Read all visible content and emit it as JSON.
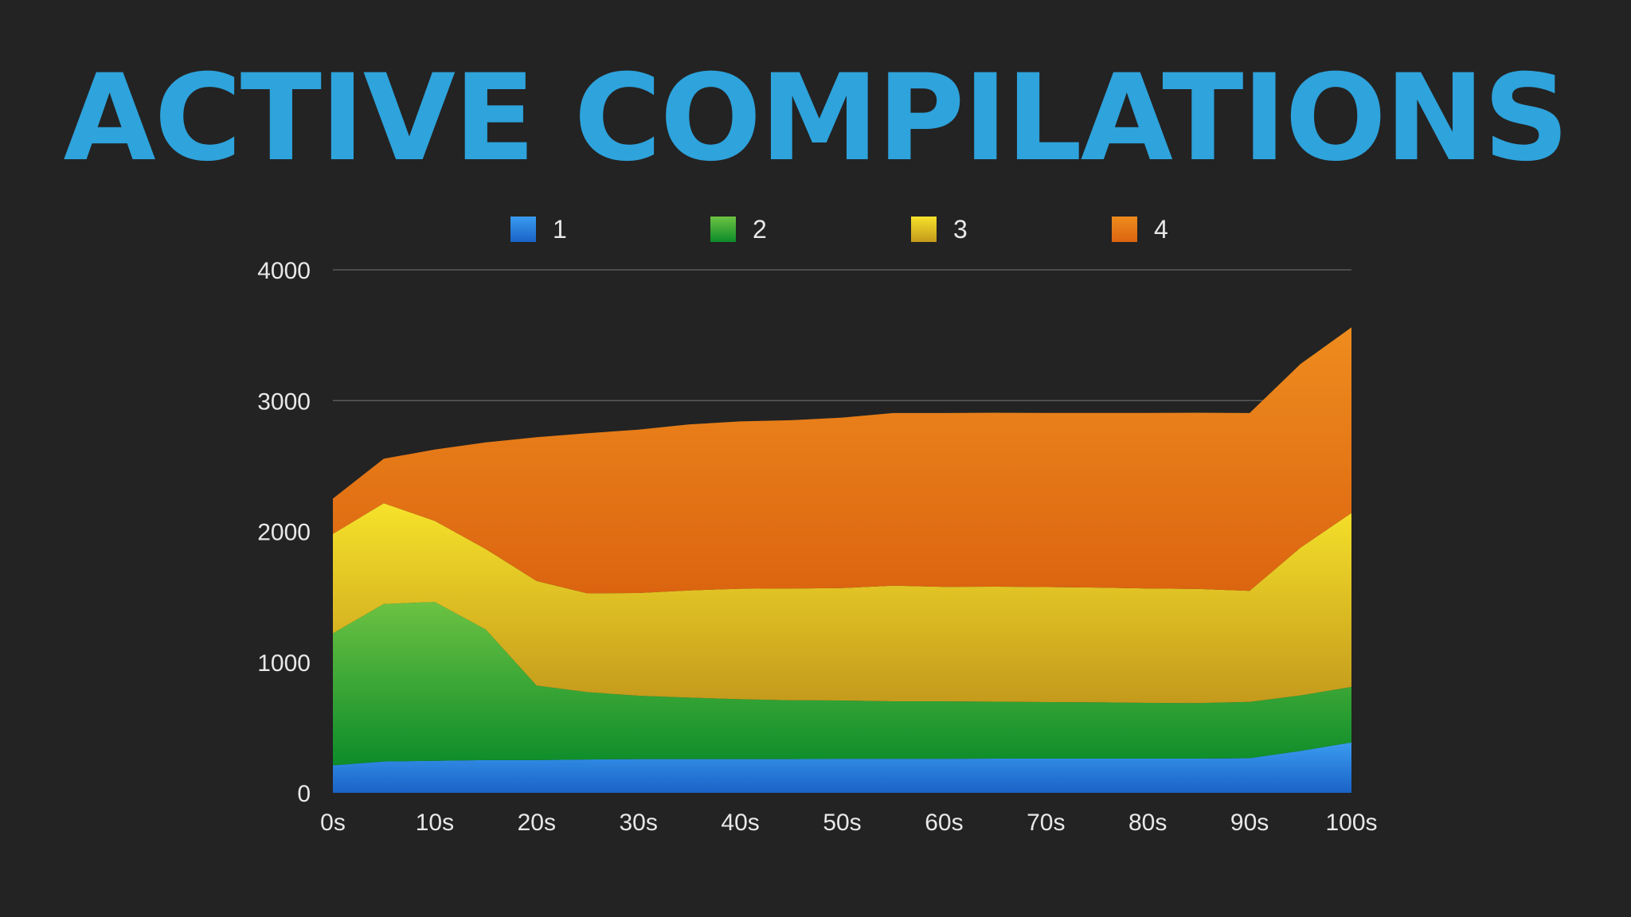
{
  "chart_data": {
    "type": "area",
    "stacked": true,
    "title": "ACTIVE COMPILATIONS",
    "xlabel": "",
    "ylabel": "",
    "x": [
      0,
      5,
      10,
      15,
      20,
      25,
      30,
      35,
      40,
      45,
      50,
      55,
      60,
      65,
      70,
      75,
      80,
      85,
      90,
      95,
      100
    ],
    "x_tick_labels": [
      "0s",
      "10s",
      "20s",
      "30s",
      "40s",
      "50s",
      "60s",
      "70s",
      "80s",
      "90s",
      "100s"
    ],
    "x_ticks": [
      0,
      10,
      20,
      30,
      40,
      50,
      60,
      70,
      80,
      90,
      100
    ],
    "xlim": [
      0,
      100
    ],
    "y_ticks": [
      0,
      1000,
      2000,
      3000,
      4000
    ],
    "y_tick_labels": [
      "0",
      "1000",
      "2000",
      "3000",
      "4000"
    ],
    "ylim": [
      0,
      4000
    ],
    "grid": "horizontal",
    "legend_position": "top",
    "series": [
      {
        "name": "1",
        "color_top": "#3a9bef",
        "color_bottom": "#1a63c8",
        "values": [
          210,
          240,
          245,
          250,
          250,
          255,
          258,
          258,
          258,
          258,
          260,
          260,
          260,
          262,
          262,
          262,
          262,
          262,
          265,
          320,
          385
        ]
      },
      {
        "name": "2",
        "color_top": "#6cc242",
        "color_bottom": "#0c8c2a",
        "values": [
          1010,
          1205,
          1215,
          1000,
          570,
          515,
          485,
          470,
          458,
          450,
          446,
          440,
          440,
          435,
          432,
          430,
          426,
          425,
          430,
          425,
          425
        ]
      },
      {
        "name": "3",
        "color_top": "#f6e22a",
        "color_bottom": "#c49a1c",
        "values": [
          760,
          770,
          620,
          615,
          800,
          755,
          785,
          820,
          845,
          855,
          860,
          885,
          875,
          880,
          880,
          878,
          875,
          872,
          850,
          1130,
          1330
        ]
      },
      {
        "name": "4",
        "color_top": "#ee8c1e",
        "color_bottom": "#dc6410",
        "values": [
          270,
          340,
          545,
          815,
          1100,
          1225,
          1250,
          1270,
          1280,
          1287,
          1304,
          1320,
          1330,
          1330,
          1332,
          1336,
          1343,
          1348,
          1360,
          1405,
          1420
        ]
      }
    ]
  }
}
